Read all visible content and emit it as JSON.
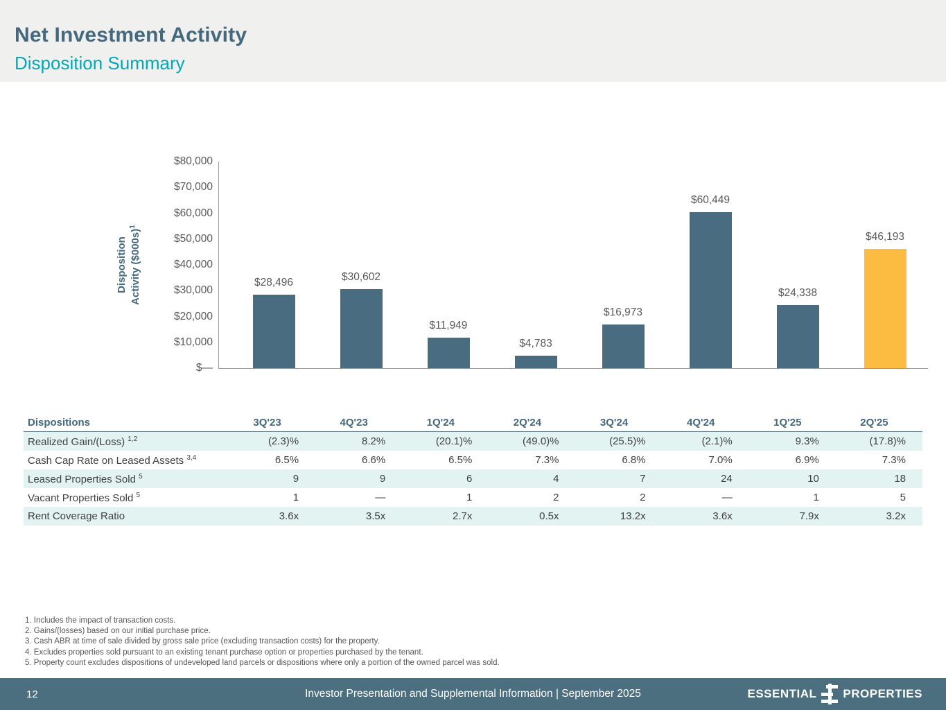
{
  "slide": {
    "title": "Net Investment Activity",
    "subtitle": "Disposition Summary"
  },
  "chart_data": {
    "type": "bar",
    "ylabel": "Disposition\nActivity ($000s)",
    "ylabel_superscript": "1",
    "categories": [
      "3Q'23",
      "4Q'23",
      "1Q'24",
      "2Q'24",
      "3Q'24",
      "4Q'24",
      "1Q'25",
      "2Q'25"
    ],
    "values": [
      28496,
      30602,
      11949,
      4783,
      16973,
      60449,
      24338,
      46193
    ],
    "value_labels": [
      "$28,496",
      "$30,602",
      "$11,949",
      "$4,783",
      "$16,973",
      "$60,449",
      "$24,338",
      "$46,193"
    ],
    "ylim": [
      0,
      80000
    ],
    "ytick_labels": [
      "$80,000",
      "$70,000",
      "$60,000",
      "$50,000",
      "$40,000",
      "$30,000",
      "$20,000",
      "$10,000",
      "$—"
    ],
    "grid": false,
    "legend": false,
    "bar_color": "#4A6C80",
    "highlight_color": "#FBBC41",
    "highlight_index": 7
  },
  "table": {
    "corner_header": "Dispositions",
    "column_headers": [
      "3Q'23",
      "4Q'23",
      "1Q'24",
      "2Q'24",
      "3Q'24",
      "4Q'24",
      "1Q'25",
      "2Q'25"
    ],
    "rows": [
      {
        "label": "Realized Gain/(Loss)",
        "superscript": "1,2",
        "values": [
          "(2.3)%",
          "8.2%",
          "(20.1)%",
          "(49.0)%",
          "(25.5)%",
          "(2.1)%",
          "9.3%",
          "(17.8)%"
        ]
      },
      {
        "label": "Cash Cap Rate on Leased Assets",
        "superscript": "3,4",
        "values": [
          "6.5%",
          "6.6%",
          "6.5%",
          "7.3%",
          "6.8%",
          "7.0%",
          "6.9%",
          "7.3%"
        ]
      },
      {
        "label": "Leased Properties Sold",
        "superscript": "5",
        "values": [
          "9",
          "9",
          "6",
          "4",
          "7",
          "24",
          "10",
          "18"
        ]
      },
      {
        "label": "Vacant Properties Sold",
        "superscript": "5",
        "values": [
          "1",
          "—",
          "1",
          "2",
          "2",
          "—",
          "1",
          "5"
        ]
      },
      {
        "label": "Rent Coverage Ratio",
        "superscript": "",
        "values": [
          "3.6x",
          "3.5x",
          "2.7x",
          "0.5x",
          "13.2x",
          "3.6x",
          "7.9x",
          "3.2x"
        ]
      }
    ]
  },
  "footnotes": [
    "1. Includes the impact of transaction costs.",
    "2. Gains/(losses) based on our initial purchase price.",
    "3. Cash ABR at time of sale divided by gross sale price (excluding transaction costs) for the property.",
    "4. Excludes properties sold pursuant to an existing tenant purchase option or properties purchased by the tenant.",
    "5. Property count excludes dispositions of undeveloped land parcels or dispositions where only a portion of the owned parcel was sold."
  ],
  "footer": {
    "page_number": "12",
    "center_text": "Investor Presentation and Supplemental Information |  September 2025",
    "logo_word_left": "ESSENTIAL",
    "logo_word_right": "PROPERTIES"
  },
  "colors": {
    "title_text": "#44687E",
    "subtitle_text": "#00A9B7",
    "header_band_bg": "#F0F0EF",
    "bar": "#4A6C80",
    "bar_highlight": "#FBBC41",
    "table_stripe": "#E3F3F2",
    "footer_bg": "#4C6F80",
    "tick_text": "#595959"
  }
}
